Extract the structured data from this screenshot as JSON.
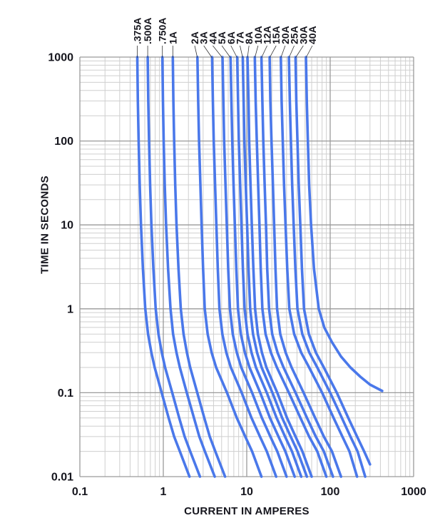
{
  "figure": {
    "background": "#ffffff",
    "curve_color": "#4a78ea",
    "grid_minor_color": "#cfcfcf",
    "grid_major_color": "#9a9a9a",
    "text_color": "#16161e",
    "leader_color": "#333333"
  },
  "chart_data": {
    "type": "line",
    "title": "",
    "xlabel": "CURRENT IN AMPERES",
    "ylabel": "TIME IN SECONDS",
    "x_scale": "log",
    "y_scale": "log",
    "xlim": [
      0.1,
      1000
    ],
    "ylim": [
      0.01,
      1000
    ],
    "x_tick_labels": [
      "0.1",
      "1",
      "10",
      "100",
      "1000"
    ],
    "y_tick_labels": [
      "1000",
      "100",
      "10",
      "1",
      "0.1",
      "0.01"
    ],
    "grid": true,
    "legend_position": "rotated labels above plot with leader lines to each curve",
    "series": [
      {
        "label": ".375A",
        "rating_amperes": 0.375,
        "points_amps_seconds": [
          [
            0.488,
            1000
          ],
          [
            0.495,
            300
          ],
          [
            0.506,
            100
          ],
          [
            0.521,
            30
          ],
          [
            0.54,
            10
          ],
          [
            0.57,
            3
          ],
          [
            0.608,
            1
          ],
          [
            0.656,
            0.5
          ],
          [
            0.72,
            0.3
          ],
          [
            0.788,
            0.2
          ],
          [
            0.956,
            0.1
          ],
          [
            1.16,
            0.05
          ],
          [
            1.35,
            0.03
          ],
          [
            1.58,
            0.02
          ],
          [
            2.06,
            0.01
          ]
        ]
      },
      {
        "label": ".500A",
        "rating_amperes": 0.5,
        "points_amps_seconds": [
          [
            0.65,
            1000
          ],
          [
            0.66,
            300
          ],
          [
            0.675,
            100
          ],
          [
            0.695,
            30
          ],
          [
            0.72,
            10
          ],
          [
            0.76,
            3
          ],
          [
            0.81,
            1
          ],
          [
            0.875,
            0.5
          ],
          [
            0.96,
            0.3
          ],
          [
            1.05,
            0.2
          ],
          [
            1.28,
            0.1
          ],
          [
            1.55,
            0.05
          ],
          [
            1.8,
            0.03
          ],
          [
            2.1,
            0.02
          ],
          [
            2.75,
            0.01
          ]
        ]
      },
      {
        "label": ".750A",
        "rating_amperes": 0.75,
        "points_amps_seconds": [
          [
            0.975,
            1000
          ],
          [
            0.99,
            300
          ],
          [
            1.01,
            100
          ],
          [
            1.04,
            30
          ],
          [
            1.08,
            10
          ],
          [
            1.14,
            3
          ],
          [
            1.22,
            1
          ],
          [
            1.31,
            0.5
          ],
          [
            1.44,
            0.3
          ],
          [
            1.58,
            0.2
          ],
          [
            1.91,
            0.1
          ],
          [
            2.33,
            0.05
          ],
          [
            2.7,
            0.03
          ],
          [
            3.15,
            0.02
          ],
          [
            4.13,
            0.01
          ]
        ]
      },
      {
        "label": "1A",
        "rating_amperes": 1,
        "points_amps_seconds": [
          [
            1.3,
            1000
          ],
          [
            1.32,
            300
          ],
          [
            1.35,
            100
          ],
          [
            1.39,
            30
          ],
          [
            1.44,
            10
          ],
          [
            1.52,
            3
          ],
          [
            1.62,
            1
          ],
          [
            1.75,
            0.5
          ],
          [
            1.92,
            0.3
          ],
          [
            2.1,
            0.2
          ],
          [
            2.55,
            0.1
          ],
          [
            3.1,
            0.05
          ],
          [
            3.6,
            0.03
          ],
          [
            4.2,
            0.02
          ],
          [
            5.5,
            0.01
          ]
        ]
      },
      {
        "label": "2A",
        "rating_amperes": 2,
        "points_amps_seconds": [
          [
            2.56,
            1000
          ],
          [
            2.62,
            300
          ],
          [
            2.68,
            100
          ],
          [
            2.78,
            30
          ],
          [
            2.88,
            10
          ],
          [
            3.0,
            3
          ],
          [
            3.14,
            1
          ],
          [
            3.4,
            0.5
          ],
          [
            3.8,
            0.3
          ],
          [
            4.3,
            0.2
          ],
          [
            5.8,
            0.1
          ],
          [
            7.6,
            0.05
          ],
          [
            9.6,
            0.03
          ],
          [
            11.6,
            0.02
          ],
          [
            15.0,
            0.01
          ]
        ]
      },
      {
        "label": "3A",
        "rating_amperes": 3,
        "points_amps_seconds": [
          [
            3.84,
            1000
          ],
          [
            3.93,
            300
          ],
          [
            4.02,
            100
          ],
          [
            4.17,
            30
          ],
          [
            4.32,
            10
          ],
          [
            4.5,
            3
          ],
          [
            4.71,
            1
          ],
          [
            5.1,
            0.5
          ],
          [
            5.7,
            0.3
          ],
          [
            6.45,
            0.2
          ],
          [
            8.7,
            0.1
          ],
          [
            11.4,
            0.05
          ],
          [
            14.4,
            0.03
          ],
          [
            17.4,
            0.02
          ],
          [
            22.5,
            0.01
          ]
        ]
      },
      {
        "label": "4A",
        "rating_amperes": 4,
        "points_amps_seconds": [
          [
            5.12,
            1000
          ],
          [
            5.24,
            300
          ],
          [
            5.36,
            100
          ],
          [
            5.56,
            30
          ],
          [
            5.76,
            10
          ],
          [
            6.0,
            3
          ],
          [
            6.28,
            1
          ],
          [
            6.8,
            0.5
          ],
          [
            7.6,
            0.3
          ],
          [
            8.6,
            0.2
          ],
          [
            11.6,
            0.1
          ],
          [
            15.2,
            0.05
          ],
          [
            19.2,
            0.03
          ],
          [
            23.2,
            0.02
          ],
          [
            30.0,
            0.01
          ]
        ]
      },
      {
        "label": "5A",
        "rating_amperes": 5,
        "points_amps_seconds": [
          [
            6.4,
            1000
          ],
          [
            6.55,
            300
          ],
          [
            6.7,
            100
          ],
          [
            6.95,
            30
          ],
          [
            7.2,
            10
          ],
          [
            7.5,
            3
          ],
          [
            7.85,
            1
          ],
          [
            8.5,
            0.5
          ],
          [
            9.5,
            0.3
          ],
          [
            10.8,
            0.2
          ],
          [
            14.5,
            0.1
          ],
          [
            19.0,
            0.05
          ],
          [
            24.0,
            0.03
          ],
          [
            29.0,
            0.02
          ],
          [
            37.5,
            0.01
          ]
        ]
      },
      {
        "label": "6A",
        "rating_amperes": 6,
        "points_amps_seconds": [
          [
            7.68,
            1000
          ],
          [
            7.86,
            300
          ],
          [
            8.04,
            100
          ],
          [
            8.34,
            30
          ],
          [
            8.64,
            10
          ],
          [
            9.0,
            3
          ],
          [
            9.42,
            1
          ],
          [
            10.2,
            0.5
          ],
          [
            11.4,
            0.3
          ],
          [
            12.9,
            0.2
          ],
          [
            17.4,
            0.1
          ],
          [
            22.8,
            0.05
          ],
          [
            28.8,
            0.03
          ],
          [
            34.8,
            0.02
          ],
          [
            45.0,
            0.01
          ]
        ]
      },
      {
        "label": "7A",
        "rating_amperes": 7,
        "points_amps_seconds": [
          [
            8.96,
            1000
          ],
          [
            9.17,
            300
          ],
          [
            9.38,
            100
          ],
          [
            9.73,
            30
          ],
          [
            10.1,
            10
          ],
          [
            10.5,
            3
          ],
          [
            11.0,
            1
          ],
          [
            11.9,
            0.5
          ],
          [
            13.3,
            0.3
          ],
          [
            15.1,
            0.2
          ],
          [
            20.3,
            0.1
          ],
          [
            26.6,
            0.05
          ],
          [
            33.6,
            0.03
          ],
          [
            40.6,
            0.02
          ],
          [
            52.5,
            0.01
          ]
        ]
      },
      {
        "label": "8A",
        "rating_amperes": 8,
        "points_amps_seconds": [
          [
            10.2,
            1000
          ],
          [
            10.5,
            300
          ],
          [
            10.7,
            100
          ],
          [
            11.1,
            30
          ],
          [
            11.5,
            10
          ],
          [
            12.0,
            3
          ],
          [
            12.6,
            1
          ],
          [
            13.6,
            0.5
          ],
          [
            15.2,
            0.3
          ],
          [
            17.2,
            0.2
          ],
          [
            23.2,
            0.1
          ],
          [
            30.4,
            0.05
          ],
          [
            38.4,
            0.03
          ],
          [
            46.4,
            0.02
          ],
          [
            60.0,
            0.01
          ]
        ]
      },
      {
        "label": "10A",
        "rating_amperes": 10,
        "points_amps_seconds": [
          [
            12.5,
            1000
          ],
          [
            12.8,
            300
          ],
          [
            13.2,
            100
          ],
          [
            13.7,
            30
          ],
          [
            14.2,
            10
          ],
          [
            14.7,
            3
          ],
          [
            15.4,
            1
          ],
          [
            16.8,
            0.5
          ],
          [
            19.5,
            0.3
          ],
          [
            23.0,
            0.2
          ],
          [
            32.0,
            0.1
          ],
          [
            44.0,
            0.05
          ],
          [
            56.0,
            0.03
          ],
          [
            70.0,
            0.02
          ],
          [
            90.0,
            0.01
          ]
        ]
      },
      {
        "label": "12A",
        "rating_amperes": 12,
        "points_amps_seconds": [
          [
            15.0,
            1000
          ],
          [
            15.4,
            300
          ],
          [
            15.8,
            100
          ],
          [
            16.4,
            30
          ],
          [
            17.0,
            10
          ],
          [
            17.6,
            3
          ],
          [
            18.5,
            1
          ],
          [
            20.2,
            0.5
          ],
          [
            23.4,
            0.3
          ],
          [
            27.6,
            0.2
          ],
          [
            38.4,
            0.1
          ],
          [
            52.8,
            0.05
          ],
          [
            67.2,
            0.03
          ],
          [
            84.0,
            0.02
          ],
          [
            108,
            0.01
          ]
        ]
      },
      {
        "label": "15A",
        "rating_amperes": 15,
        "points_amps_seconds": [
          [
            18.8,
            1000
          ],
          [
            19.2,
            300
          ],
          [
            19.8,
            100
          ],
          [
            20.6,
            30
          ],
          [
            21.3,
            10
          ],
          [
            22.1,
            3
          ],
          [
            23.1,
            1
          ],
          [
            25.2,
            0.5
          ],
          [
            29.3,
            0.3
          ],
          [
            34.5,
            0.2
          ],
          [
            48.0,
            0.1
          ],
          [
            66.0,
            0.05
          ],
          [
            84.0,
            0.03
          ],
          [
            105,
            0.02
          ],
          [
            135,
            0.01
          ]
        ]
      },
      {
        "label": "20A",
        "rating_amperes": 20,
        "points_amps_seconds": [
          [
            25.6,
            1000
          ],
          [
            26.2,
            300
          ],
          [
            27.0,
            100
          ],
          [
            28.0,
            30
          ],
          [
            29.2,
            10
          ],
          [
            30.6,
            3
          ],
          [
            32.4,
            1
          ],
          [
            37.0,
            0.5
          ],
          [
            45.0,
            0.3
          ],
          [
            56.0,
            0.2
          ],
          [
            80.0,
            0.1
          ],
          [
            110,
            0.05
          ],
          [
            140,
            0.03
          ],
          [
            170,
            0.02
          ],
          [
            210,
            0.01
          ]
        ]
      },
      {
        "label": "25A",
        "rating_amperes": 25,
        "points_amps_seconds": [
          [
            32.0,
            1000
          ],
          [
            32.8,
            300
          ],
          [
            33.8,
            100
          ],
          [
            35.0,
            30
          ],
          [
            36.5,
            10
          ],
          [
            38.3,
            3
          ],
          [
            40.5,
            1
          ],
          [
            46.3,
            0.5
          ],
          [
            56.3,
            0.3
          ],
          [
            70.0,
            0.2
          ],
          [
            100,
            0.1
          ],
          [
            138,
            0.05
          ],
          [
            175,
            0.03
          ],
          [
            213,
            0.02
          ],
          [
            263,
            0.01
          ]
        ]
      },
      {
        "label": "30A",
        "rating_amperes": 30,
        "points_amps_seconds": [
          [
            38.4,
            1000
          ],
          [
            39.3,
            300
          ],
          [
            40.5,
            100
          ],
          [
            42.0,
            30
          ],
          [
            43.8,
            10
          ],
          [
            45.9,
            3
          ],
          [
            48.6,
            1
          ],
          [
            55.5,
            0.5
          ],
          [
            67.5,
            0.3
          ],
          [
            84.0,
            0.2
          ],
          [
            120,
            0.1
          ],
          [
            165,
            0.05
          ],
          [
            210,
            0.03
          ],
          [
            255,
            0.02
          ],
          [
            300,
            0.014
          ]
        ]
      },
      {
        "label": "40A",
        "rating_amperes": 40,
        "points_amps_seconds": [
          [
            51.2,
            1000
          ],
          [
            52.4,
            300
          ],
          [
            54.0,
            100
          ],
          [
            56.0,
            30
          ],
          [
            59.0,
            10
          ],
          [
            64.0,
            3
          ],
          [
            73.0,
            1
          ],
          [
            85.0,
            0.6
          ],
          [
            105,
            0.4
          ],
          [
            135,
            0.27
          ],
          [
            175,
            0.2
          ],
          [
            230,
            0.155
          ],
          [
            300,
            0.125
          ],
          [
            420,
            0.105
          ]
        ]
      }
    ]
  }
}
